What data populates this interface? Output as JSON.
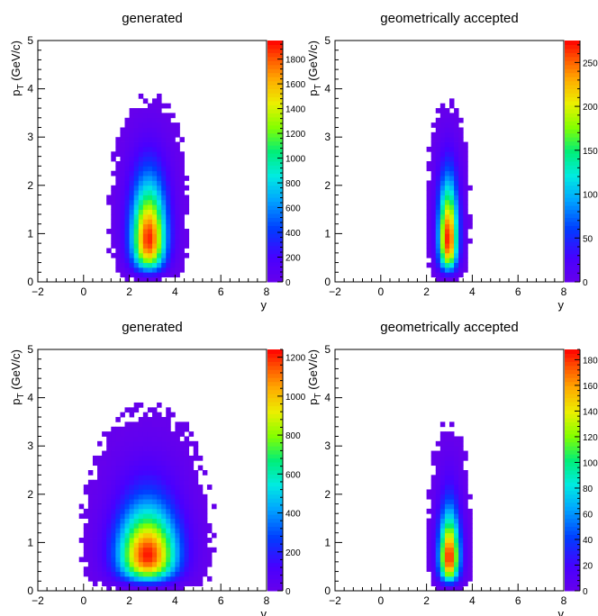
{
  "figure": {
    "panels": [
      {
        "title": "generated"
      },
      {
        "title": "geometrically accepted"
      },
      {
        "title": "generated"
      },
      {
        "title": "geometrically accepted"
      }
    ]
  },
  "chart_data": [
    {
      "type": "heatmap",
      "title": "generated",
      "xlabel": "y",
      "ylabel": "p_T (GeV/c)",
      "xlim": [
        -2,
        8
      ],
      "ylim": [
        0,
        5
      ],
      "xticks": [
        -2,
        0,
        2,
        4,
        6,
        8
      ],
      "yticks": [
        0,
        1,
        2,
        3,
        4,
        5
      ],
      "zlim": [
        0,
        1950
      ],
      "zticks": [
        0,
        200,
        400,
        600,
        800,
        1000,
        1200,
        1400,
        1600,
        1800
      ],
      "bins": {
        "dx": 0.2,
        "dy": 0.1
      },
      "distribution": {
        "x_center": 2.85,
        "x_sigma": 0.5,
        "y_mode": 0.9,
        "y_max": 3.7,
        "peak": 1900
      },
      "colorbar": "rainbow",
      "grid": false
    },
    {
      "type": "heatmap",
      "title": "geometrically accepted",
      "xlabel": "y",
      "ylabel": "p_T (GeV/c)",
      "xlim": [
        -2,
        8
      ],
      "ylim": [
        0,
        5
      ],
      "xticks": [
        -2,
        0,
        2,
        4,
        6,
        8
      ],
      "yticks": [
        0,
        1,
        2,
        3,
        4,
        5
      ],
      "zlim": [
        0,
        275
      ],
      "zticks": [
        0,
        50,
        100,
        150,
        200,
        250
      ],
      "bins": {
        "dx": 0.2,
        "dy": 0.1
      },
      "distribution": {
        "x_center": 2.95,
        "x_sigma": 0.28,
        "y_mode": 0.9,
        "y_max": 3.5,
        "peak": 270
      },
      "colorbar": "rainbow",
      "grid": false
    },
    {
      "type": "heatmap",
      "title": "generated",
      "xlabel": "v",
      "ylabel": "p_T (GeV/c)",
      "xlim": [
        -2,
        8
      ],
      "ylim": [
        0,
        5
      ],
      "xticks": [
        -2,
        0,
        2,
        4,
        6,
        8
      ],
      "yticks": [
        0,
        1,
        2,
        3,
        4,
        5
      ],
      "zlim": [
        0,
        1240
      ],
      "zticks": [
        0,
        200,
        400,
        600,
        800,
        1000,
        1200
      ],
      "bins": {
        "dx": 0.2,
        "dy": 0.1
      },
      "distribution": {
        "x_center": 2.8,
        "x_sigma": 0.85,
        "y_mode": 0.75,
        "y_max": 4.6,
        "peak": 1220
      },
      "colorbar": "rainbow",
      "grid": false
    },
    {
      "type": "heatmap",
      "title": "geometrically accepted",
      "xlabel": "v",
      "ylabel": "p_T (GeV/c)",
      "xlim": [
        -2,
        8
      ],
      "ylim": [
        0,
        5
      ],
      "xticks": [
        -2,
        0,
        2,
        4,
        6,
        8
      ],
      "yticks": [
        0,
        1,
        2,
        3,
        4,
        5
      ],
      "zlim": [
        0,
        188
      ],
      "zticks": [
        0,
        20,
        40,
        60,
        80,
        100,
        120,
        140,
        160,
        180
      ],
      "bins": {
        "dx": 0.2,
        "dy": 0.1
      },
      "distribution": {
        "x_center": 3.0,
        "x_sigma": 0.3,
        "y_mode": 0.7,
        "y_max": 3.8,
        "peak": 185
      },
      "colorbar": "rainbow",
      "grid": false
    }
  ]
}
